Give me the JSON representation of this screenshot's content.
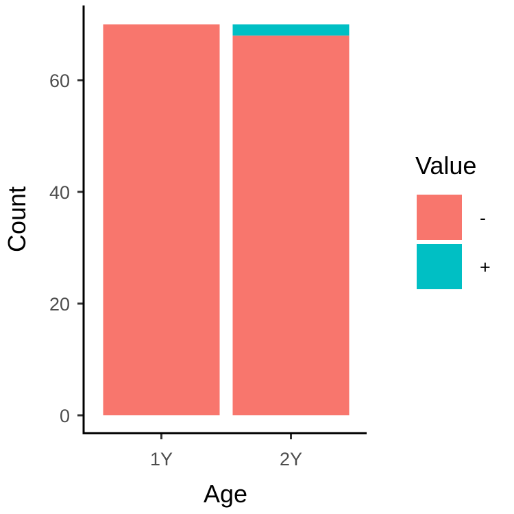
{
  "chart_data": {
    "type": "bar",
    "stacked": true,
    "categories": [
      "1Y",
      "2Y"
    ],
    "series": [
      {
        "name": "-",
        "color": "#F8766D",
        "values": [
          70,
          68
        ]
      },
      {
        "name": "+",
        "color": "#00BFC4",
        "values": [
          0,
          2
        ]
      }
    ],
    "title": "",
    "xlabel": "Age",
    "ylabel": "Count",
    "ylim": [
      0,
      73.5
    ],
    "yticks": [
      0,
      20,
      40,
      60
    ],
    "grid": false,
    "legend": {
      "title": "Value",
      "position": "right"
    }
  }
}
